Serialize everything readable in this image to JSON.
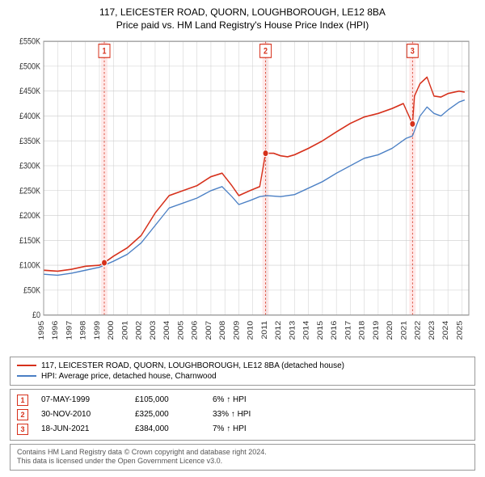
{
  "header": {
    "title": "117, LEICESTER ROAD, QUORN, LOUGHBOROUGH, LE12 8BA",
    "subtitle": "Price paid vs. HM Land Registry's House Price Index (HPI)"
  },
  "chart": {
    "type": "line",
    "background_color": "#ffffff",
    "plot_border_color": "#999999",
    "grid_color": "#cccccc",
    "xlim": [
      1995,
      2025.5
    ],
    "ylim": [
      0,
      550000
    ],
    "ytick_step": 50000,
    "ytick_labels": [
      "£0",
      "£50K",
      "£100K",
      "£150K",
      "£200K",
      "£250K",
      "£300K",
      "£350K",
      "£400K",
      "£450K",
      "£500K",
      "£550K"
    ],
    "xtick_years": [
      1995,
      1996,
      1997,
      1998,
      1999,
      2000,
      2001,
      2002,
      2003,
      2004,
      2005,
      2006,
      2007,
      2008,
      2009,
      2010,
      2011,
      2012,
      2013,
      2014,
      2015,
      2016,
      2017,
      2018,
      2019,
      2020,
      2021,
      2022,
      2023,
      2024,
      2025
    ],
    "axis_font_size": 9,
    "axis_text_color": "#333333",
    "marker_band_color": "#ffe9e9",
    "marker_line_color": "#d6301b",
    "marker_line_dash": "2,2",
    "series": [
      {
        "id": "property",
        "label": "117, LEICESTER ROAD, QUORN, LOUGHBOROUGH, LE12 8BA (detached house)",
        "color": "#d6301b",
        "line_width": 1.4,
        "data": [
          [
            1995.0,
            90000
          ],
          [
            1996.0,
            88000
          ],
          [
            1997.0,
            92000
          ],
          [
            1998.0,
            98000
          ],
          [
            1999.0,
            100000
          ],
          [
            1999.35,
            105000
          ],
          [
            2000.0,
            118000
          ],
          [
            2001.0,
            135000
          ],
          [
            2002.0,
            160000
          ],
          [
            2003.0,
            205000
          ],
          [
            2004.0,
            240000
          ],
          [
            2005.0,
            250000
          ],
          [
            2006.0,
            260000
          ],
          [
            2007.0,
            278000
          ],
          [
            2007.8,
            285000
          ],
          [
            2008.5,
            260000
          ],
          [
            2009.0,
            240000
          ],
          [
            2009.8,
            250000
          ],
          [
            2010.5,
            258000
          ],
          [
            2010.92,
            325000
          ],
          [
            2011.5,
            325000
          ],
          [
            2012.0,
            320000
          ],
          [
            2012.5,
            318000
          ],
          [
            2013.0,
            322000
          ],
          [
            2014.0,
            335000
          ],
          [
            2015.0,
            350000
          ],
          [
            2016.0,
            368000
          ],
          [
            2017.0,
            385000
          ],
          [
            2018.0,
            398000
          ],
          [
            2019.0,
            405000
          ],
          [
            2020.0,
            415000
          ],
          [
            2020.8,
            425000
          ],
          [
            2021.46,
            384000
          ],
          [
            2021.6,
            440000
          ],
          [
            2022.0,
            465000
          ],
          [
            2022.5,
            478000
          ],
          [
            2023.0,
            440000
          ],
          [
            2023.5,
            438000
          ],
          [
            2024.0,
            445000
          ],
          [
            2024.8,
            450000
          ],
          [
            2025.2,
            448000
          ]
        ]
      },
      {
        "id": "hpi",
        "label": "HPI: Average price, detached house, Charnwood",
        "color": "#4a7fc4",
        "line_width": 1.2,
        "data": [
          [
            1995.0,
            82000
          ],
          [
            1996.0,
            80000
          ],
          [
            1997.0,
            84000
          ],
          [
            1998.0,
            90000
          ],
          [
            1999.0,
            96000
          ],
          [
            2000.0,
            108000
          ],
          [
            2001.0,
            122000
          ],
          [
            2002.0,
            145000
          ],
          [
            2003.0,
            180000
          ],
          [
            2004.0,
            215000
          ],
          [
            2005.0,
            225000
          ],
          [
            2006.0,
            235000
          ],
          [
            2007.0,
            250000
          ],
          [
            2007.8,
            258000
          ],
          [
            2008.5,
            238000
          ],
          [
            2009.0,
            222000
          ],
          [
            2009.8,
            230000
          ],
          [
            2010.5,
            238000
          ],
          [
            2011.0,
            240000
          ],
          [
            2012.0,
            238000
          ],
          [
            2013.0,
            242000
          ],
          [
            2014.0,
            255000
          ],
          [
            2015.0,
            268000
          ],
          [
            2016.0,
            285000
          ],
          [
            2017.0,
            300000
          ],
          [
            2018.0,
            315000
          ],
          [
            2019.0,
            322000
          ],
          [
            2020.0,
            335000
          ],
          [
            2021.0,
            355000
          ],
          [
            2021.46,
            360000
          ],
          [
            2022.0,
            400000
          ],
          [
            2022.5,
            418000
          ],
          [
            2023.0,
            405000
          ],
          [
            2023.5,
            400000
          ],
          [
            2024.0,
            412000
          ],
          [
            2024.8,
            428000
          ],
          [
            2025.2,
            432000
          ]
        ]
      }
    ],
    "transactions": [
      {
        "n": "1",
        "year": 1999.35,
        "price": 105000
      },
      {
        "n": "2",
        "year": 2010.92,
        "price": 325000
      },
      {
        "n": "3",
        "year": 2021.46,
        "price": 384000
      }
    ]
  },
  "legend": {
    "items": [
      {
        "color": "#d6301b",
        "label": "117, LEICESTER ROAD, QUORN, LOUGHBOROUGH, LE12 8BA (detached house)"
      },
      {
        "color": "#4a7fc4",
        "label": "HPI: Average price, detached house, Charnwood"
      }
    ]
  },
  "transactions_table": {
    "rows": [
      {
        "n": "1",
        "date": "07-MAY-1999",
        "price": "£105,000",
        "pct": "6% ↑ HPI"
      },
      {
        "n": "2",
        "date": "30-NOV-2010",
        "price": "£325,000",
        "pct": "33% ↑ HPI"
      },
      {
        "n": "3",
        "date": "18-JUN-2021",
        "price": "£384,000",
        "pct": "7% ↑ HPI"
      }
    ]
  },
  "footer": {
    "line1": "Contains HM Land Registry data © Crown copyright and database right 2024.",
    "line2": "This data is licensed under the Open Government Licence v3.0."
  }
}
